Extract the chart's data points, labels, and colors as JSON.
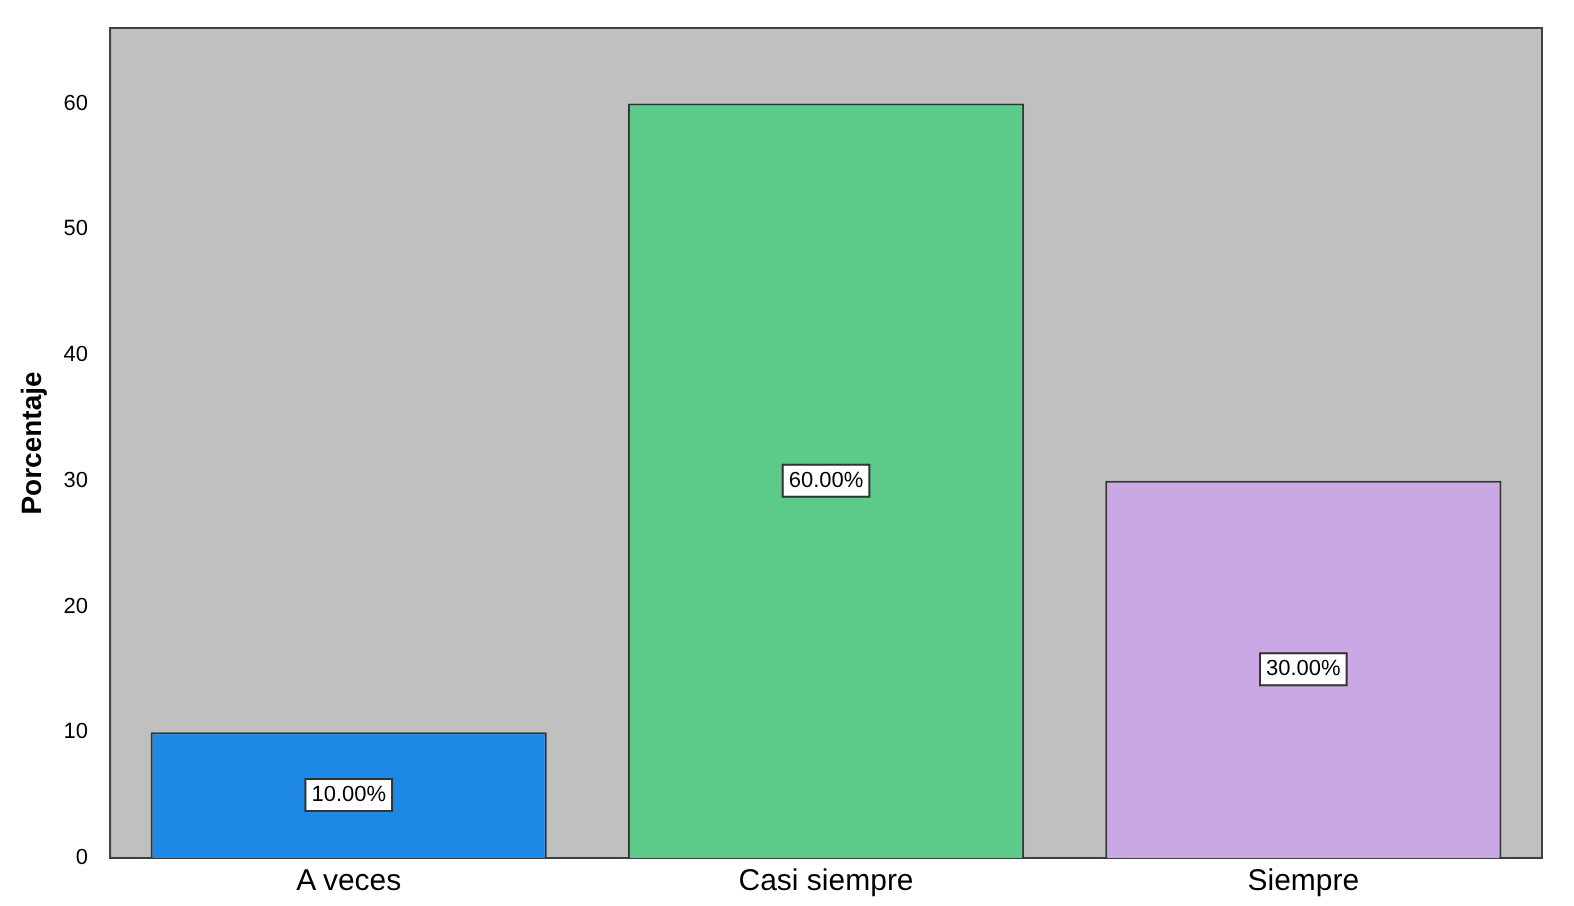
{
  "chart_data": {
    "type": "bar",
    "ylabel": "Porcentaje",
    "categories": [
      "A veces",
      "Casi siempre",
      "Siempre"
    ],
    "values": [
      10,
      60,
      30
    ],
    "colors": [
      "#1e88e5",
      "#5ccb8a",
      "#c9a8e3"
    ],
    "value_labels": [
      "10.00%",
      "60.00%",
      "30.00%"
    ],
    "ylim": [
      0,
      66
    ],
    "yticks": [
      0,
      10,
      20,
      30,
      40,
      50,
      60
    ],
    "grid": false,
    "legend": false
  }
}
